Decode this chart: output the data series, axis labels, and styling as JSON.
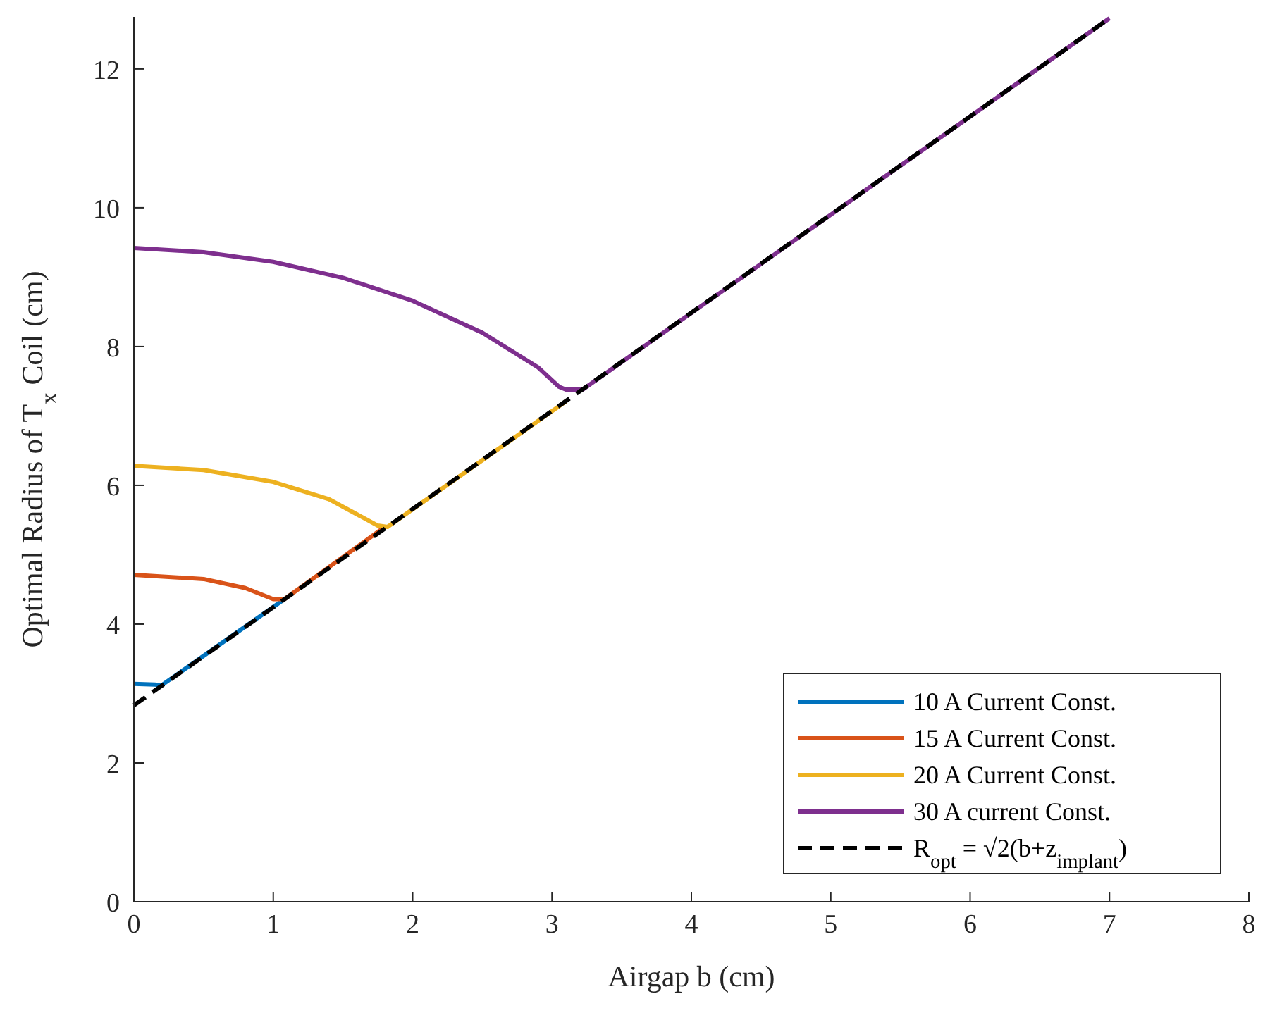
{
  "chart_data": {
    "type": "line",
    "xlabel": "Airgap  b (cm)",
    "ylabel": "Optimal Radius of T$_{x}$ Coil (cm)",
    "xlim": [
      0,
      8
    ],
    "ylim": [
      0,
      12.75
    ],
    "xticks": [
      0,
      1,
      2,
      3,
      4,
      5,
      6,
      7,
      8
    ],
    "yticks": [
      0,
      2,
      4,
      6,
      8,
      10,
      12
    ],
    "grid": false,
    "legend": "bottom right",
    "series": [
      {
        "name": "10 A Current Const.",
        "color": "#0072bd",
        "x": [
          0,
          0.15,
          0.2,
          1.08
        ],
        "values": [
          3.14,
          3.13,
          3.12,
          4.36
        ]
      },
      {
        "name": "15 A Current Const.",
        "color": "#d95319",
        "x": [
          0,
          0.5,
          0.8,
          1.0,
          1.08,
          1.8
        ],
        "values": [
          4.71,
          4.65,
          4.52,
          4.36,
          4.36,
          5.4
        ]
      },
      {
        "name": "20 A Current Const.",
        "color": "#edb120",
        "x": [
          0,
          0.5,
          1,
          1.4,
          1.75,
          1.82,
          3.1
        ],
        "values": [
          6.28,
          6.22,
          6.05,
          5.8,
          5.42,
          5.4,
          7.21
        ]
      },
      {
        "name": "30 A current Const.",
        "color": "#7e2f8e",
        "x": [
          0,
          0.5,
          1,
          1.5,
          2,
          2.5,
          2.9,
          3.05,
          3.1,
          3.22,
          7
        ],
        "values": [
          9.42,
          9.36,
          9.22,
          8.99,
          8.66,
          8.2,
          7.7,
          7.42,
          7.38,
          7.38,
          12.73
        ]
      },
      {
        "name": "R$_{opt}$ = √2(b+z$_{implant}$)",
        "color": "#000000",
        "line_style": "dashed",
        "x": [
          0,
          7
        ],
        "values": [
          2.83,
          12.73
        ]
      }
    ]
  }
}
